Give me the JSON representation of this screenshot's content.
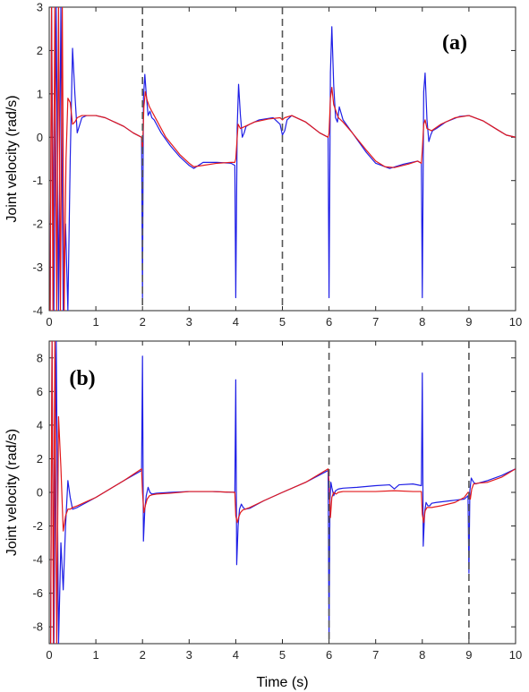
{
  "colors": {
    "series_a": "#1f1fe6",
    "series_b": "#e31a1c",
    "vline": "#555555",
    "axis": "#262626"
  },
  "chart_data": [
    {
      "type": "line",
      "panel_label": "(a)",
      "ylabel": "Joint velocity (rad/s)",
      "xlabel": "",
      "xlim": [
        0,
        10
      ],
      "ylim": [
        -4,
        3
      ],
      "xticks": [
        "0",
        "1",
        "2",
        "3",
        "4",
        "5",
        "6",
        "7",
        "8",
        "9",
        "10"
      ],
      "yticks": [
        "-4",
        "-3",
        "-2",
        "-1",
        "0",
        "1",
        "2",
        "3"
      ],
      "grid": false,
      "vlines": [
        2,
        5
      ],
      "series": [
        {
          "color": "blue",
          "x": [
            0.02,
            0.05,
            0.1,
            0.15,
            0.2,
            0.25,
            0.3,
            0.35,
            0.4,
            0.45,
            0.5,
            0.55,
            0.6,
            0.7,
            0.8,
            1.0,
            1.2,
            1.4,
            1.6,
            1.8,
            1.98,
            2.0,
            2.02,
            2.05,
            2.08,
            2.12,
            2.16,
            2.2,
            2.25,
            2.3,
            2.4,
            2.6,
            2.8,
            3.0,
            3.1,
            3.3,
            3.6,
            3.9,
            3.98,
            4.0,
            4.03,
            4.06,
            4.1,
            4.14,
            4.18,
            4.22,
            4.3,
            4.5,
            4.8,
            4.95,
            5.0,
            5.05,
            5.1,
            5.2,
            5.5,
            5.8,
            5.98,
            6.0,
            6.03,
            6.06,
            6.1,
            6.14,
            6.18,
            6.22,
            6.3,
            6.5,
            6.8,
            7.0,
            7.3,
            7.6,
            7.9,
            7.98,
            8.0,
            8.03,
            8.06,
            8.1,
            8.14,
            8.18,
            8.22,
            8.3,
            8.5,
            8.8,
            9.0,
            9.3,
            9.6,
            9.8,
            10.0
          ],
          "y": [
            -4,
            3,
            -4,
            3,
            -4,
            3,
            -4,
            -2,
            -4,
            -0.5,
            2.05,
            1.0,
            0.1,
            0.45,
            0.5,
            0.5,
            0.45,
            0.35,
            0.25,
            0.1,
            0.0,
            -3.7,
            0.9,
            1.45,
            1.0,
            0.5,
            0.6,
            0.45,
            0.4,
            0.3,
            0.1,
            -0.2,
            -0.45,
            -0.65,
            -0.72,
            -0.58,
            -0.58,
            -0.6,
            -0.65,
            -3.7,
            0.2,
            1.22,
            0.5,
            0.0,
            0.1,
            0.25,
            0.3,
            0.4,
            0.45,
            0.3,
            0.05,
            0.15,
            0.4,
            0.5,
            0.35,
            0.1,
            0.0,
            -3.7,
            1.5,
            2.55,
            1.2,
            0.45,
            0.35,
            0.7,
            0.4,
            0.1,
            -0.35,
            -0.6,
            -0.72,
            -0.62,
            -0.55,
            -0.6,
            -3.7,
            1.05,
            1.48,
            0.4,
            -0.1,
            0.05,
            0.15,
            0.2,
            0.35,
            0.48,
            0.5,
            0.38,
            0.18,
            0.05,
            0.0
          ]
        },
        {
          "color": "red",
          "x": [
            0.02,
            0.05,
            0.08,
            0.12,
            0.16,
            0.2,
            0.24,
            0.28,
            0.32,
            0.36,
            0.4,
            0.45,
            0.5,
            0.55,
            0.6,
            0.7,
            0.8,
            1.0,
            1.2,
            1.4,
            1.6,
            1.8,
            1.98,
            2.0,
            2.03,
            2.06,
            2.1,
            2.15,
            2.2,
            2.3,
            2.5,
            2.8,
            3.0,
            3.1,
            3.3,
            3.6,
            3.9,
            3.98,
            4.0,
            4.05,
            4.1,
            4.2,
            4.4,
            4.7,
            4.95,
            5.0,
            5.05,
            5.2,
            5.5,
            5.8,
            5.98,
            6.0,
            6.03,
            6.06,
            6.1,
            6.2,
            6.3,
            6.5,
            6.8,
            7.0,
            7.2,
            7.4,
            7.7,
            7.9,
            7.98,
            8.0,
            8.03,
            8.06,
            8.1,
            8.2,
            8.4,
            8.7,
            9.0,
            9.3,
            9.6,
            9.8,
            10.0
          ],
          "y": [
            -4,
            3,
            -4,
            3,
            -4,
            3,
            -4,
            3,
            -4,
            -0.5,
            0.9,
            0.8,
            0.3,
            0.35,
            0.45,
            0.5,
            0.5,
            0.5,
            0.45,
            0.35,
            0.25,
            0.1,
            0.0,
            -0.3,
            0.7,
            1.05,
            0.85,
            0.7,
            0.6,
            0.4,
            0.0,
            -0.4,
            -0.6,
            -0.68,
            -0.65,
            -0.6,
            -0.58,
            -0.58,
            -0.5,
            0.3,
            0.2,
            0.25,
            0.35,
            0.42,
            0.45,
            0.4,
            0.45,
            0.5,
            0.35,
            0.1,
            0.0,
            0.1,
            0.9,
            1.15,
            0.75,
            0.45,
            0.35,
            0.1,
            -0.3,
            -0.55,
            -0.68,
            -0.7,
            -0.62,
            -0.55,
            -0.6,
            -0.3,
            0.3,
            0.4,
            0.2,
            0.15,
            0.3,
            0.45,
            0.5,
            0.38,
            0.18,
            0.05,
            0.0
          ]
        }
      ]
    },
    {
      "type": "line",
      "panel_label": "(b)",
      "ylabel": "Joint velocity (rad/s)",
      "xlabel": "Time (s)",
      "xlim": [
        0,
        10
      ],
      "ylim": [
        -9,
        9
      ],
      "xticks": [
        "0",
        "1",
        "2",
        "3",
        "4",
        "5",
        "6",
        "7",
        "8",
        "9",
        "10"
      ],
      "yticks": [
        "-8",
        "-6",
        "-4",
        "-2",
        "0",
        "2",
        "4",
        "6",
        "8"
      ],
      "grid": false,
      "vlines": [
        6,
        9
      ],
      "series": [
        {
          "color": "blue",
          "x": [
            0.03,
            0.06,
            0.1,
            0.15,
            0.2,
            0.25,
            0.3,
            0.35,
            0.4,
            0.45,
            0.5,
            0.6,
            0.8,
            1.0,
            1.3,
            1.6,
            1.98,
            2.0,
            2.02,
            2.05,
            2.08,
            2.12,
            2.16,
            2.2,
            2.3,
            2.6,
            3.0,
            3.5,
            3.98,
            4.0,
            4.02,
            4.05,
            4.08,
            4.12,
            4.16,
            4.2,
            4.3,
            4.6,
            5.0,
            5.5,
            5.98,
            6.0,
            6.02,
            6.04,
            6.06,
            6.1,
            6.14,
            6.2,
            6.3,
            6.6,
            7.0,
            7.3,
            7.4,
            7.5,
            7.8,
            7.98,
            8.0,
            8.02,
            8.05,
            8.08,
            8.12,
            8.16,
            8.2,
            8.3,
            8.6,
            8.9,
            8.98,
            9.0,
            9.02,
            9.05,
            9.1,
            9.15,
            9.2,
            9.4,
            9.7,
            10.0
          ],
          "y": [
            -9,
            9,
            -9,
            9,
            -9,
            -3,
            -5.8,
            -2,
            0.7,
            -0.3,
            -1.0,
            -0.9,
            -0.6,
            -0.3,
            0.2,
            0.7,
            1.3,
            8.1,
            -2.9,
            -1.0,
            -0.2,
            0.3,
            0.0,
            -0.1,
            -0.05,
            0.0,
            0.05,
            0.05,
            0.0,
            6.7,
            -4.3,
            -2.0,
            -1.0,
            -0.7,
            -0.9,
            -1.0,
            -0.95,
            -0.5,
            0.0,
            0.6,
            1.3,
            -8.7,
            -0.5,
            0.6,
            0.3,
            -0.2,
            0.1,
            0.2,
            0.25,
            0.3,
            0.4,
            0.45,
            0.2,
            0.45,
            0.5,
            0.4,
            7.1,
            -3.2,
            -1.2,
            -0.6,
            -0.8,
            -0.8,
            -0.65,
            -0.6,
            -0.5,
            -0.4,
            -0.2,
            -4.8,
            0.1,
            0.85,
            0.6,
            0.5,
            0.55,
            0.7,
            1.0,
            1.4
          ]
        },
        {
          "color": "red",
          "x": [
            0.03,
            0.06,
            0.09,
            0.12,
            0.16,
            0.2,
            0.25,
            0.3,
            0.35,
            0.4,
            0.45,
            0.5,
            0.6,
            0.8,
            1.0,
            1.3,
            1.6,
            1.98,
            2.0,
            2.03,
            2.06,
            2.1,
            2.15,
            2.2,
            2.3,
            2.6,
            3.0,
            3.5,
            3.98,
            4.0,
            4.03,
            4.06,
            4.1,
            4.15,
            4.2,
            4.3,
            4.6,
            5.0,
            5.5,
            5.98,
            6.0,
            6.03,
            6.06,
            6.1,
            6.15,
            6.2,
            6.3,
            6.6,
            7.0,
            7.4,
            7.8,
            7.98,
            8.0,
            8.03,
            8.06,
            8.1,
            8.2,
            8.4,
            8.7,
            8.9,
            8.98,
            9.0,
            9.03,
            9.06,
            9.1,
            9.2,
            9.4,
            9.7,
            10.0
          ],
          "y": [
            -9,
            9,
            -9,
            9,
            -9,
            4.5,
            1.5,
            -2.3,
            -1.4,
            -1.0,
            -1.0,
            -0.9,
            -0.8,
            -0.55,
            -0.3,
            0.2,
            0.7,
            1.4,
            0.0,
            -1.2,
            -0.8,
            -0.4,
            -0.2,
            -0.15,
            -0.1,
            -0.05,
            0.05,
            0.05,
            0.0,
            -1.4,
            -1.8,
            -1.5,
            -1.2,
            -1.05,
            -1.0,
            -0.9,
            -0.5,
            0.0,
            0.6,
            1.4,
            0.6,
            -1.5,
            -0.3,
            0.0,
            -0.1,
            0.0,
            0.05,
            0.05,
            0.05,
            0.1,
            0.05,
            0.05,
            -1.3,
            -1.8,
            -1.1,
            -0.9,
            -0.9,
            -0.8,
            -0.6,
            -0.3,
            0.0,
            0.0,
            -0.4,
            0.2,
            0.5,
            0.55,
            0.6,
            0.9,
            1.4
          ]
        }
      ]
    }
  ]
}
